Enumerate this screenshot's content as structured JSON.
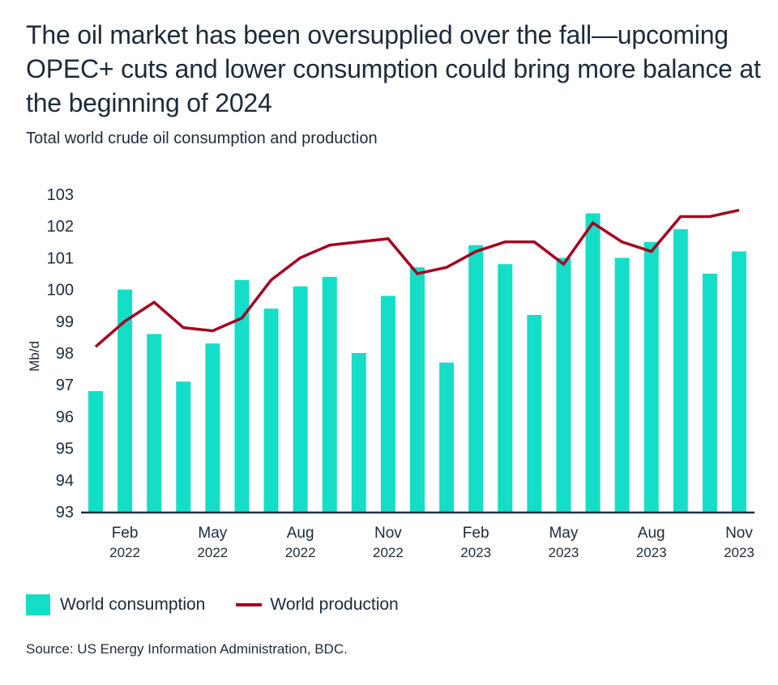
{
  "chart_data": {
    "type": "bar+line",
    "title": "The oil market has been oversupplied over the fall—upcoming OPEC+ cuts and lower consumption could bring more balance at the beginning of 2024",
    "subtitle": "Total world crude oil consumption and production",
    "ylabel": "Mb/d",
    "ylim": [
      93,
      103
    ],
    "yticks": [
      93,
      94,
      95,
      96,
      97,
      98,
      99,
      100,
      101,
      102,
      103
    ],
    "months": [
      "Jan 2022",
      "Feb 2022",
      "Mar 2022",
      "Apr 2022",
      "May 2022",
      "Jun 2022",
      "Jul 2022",
      "Aug 2022",
      "Sep 2022",
      "Oct 2022",
      "Nov 2022",
      "Dec 2022",
      "Jan 2023",
      "Feb 2023",
      "Mar 2023",
      "Apr 2023",
      "May 2023",
      "Jun 2023",
      "Jul 2023",
      "Aug 2023",
      "Sep 2023",
      "Oct 2023",
      "Nov 2023"
    ],
    "xticks": [
      {
        "index": 1,
        "month": "Feb",
        "year": "2022"
      },
      {
        "index": 4,
        "month": "May",
        "year": "2022"
      },
      {
        "index": 7,
        "month": "Aug",
        "year": "2022"
      },
      {
        "index": 10,
        "month": "Nov",
        "year": "2022"
      },
      {
        "index": 13,
        "month": "Feb",
        "year": "2023"
      },
      {
        "index": 16,
        "month": "May",
        "year": "2023"
      },
      {
        "index": 19,
        "month": "Aug",
        "year": "2023"
      },
      {
        "index": 22,
        "month": "Nov",
        "year": "2023"
      }
    ],
    "series": [
      {
        "name": "World consumption",
        "type": "bar",
        "color": "#15dec8",
        "values": [
          96.8,
          100.0,
          98.6,
          97.1,
          98.3,
          100.3,
          99.4,
          100.1,
          100.4,
          98.0,
          99.8,
          100.7,
          97.7,
          101.4,
          100.8,
          99.2,
          101.0,
          102.4,
          101.0,
          101.5,
          101.9,
          100.5,
          101.2
        ]
      },
      {
        "name": "World production",
        "type": "line",
        "color": "#a50021",
        "values": [
          98.2,
          99.0,
          99.6,
          98.8,
          98.7,
          99.1,
          100.3,
          101.0,
          101.4,
          101.5,
          101.6,
          100.5,
          100.7,
          101.2,
          101.5,
          101.5,
          100.8,
          102.1,
          101.5,
          101.2,
          102.3,
          102.3,
          102.5
        ]
      }
    ],
    "grid": false,
    "legend": "bottom-left"
  },
  "source": "Source: US Energy Information Administration, BDC."
}
